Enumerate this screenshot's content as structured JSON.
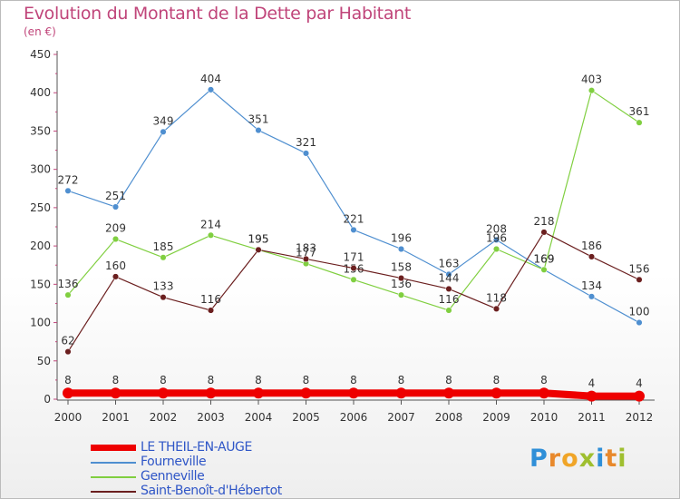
{
  "title": "Evolution du Montant de la Dette par Habitant",
  "unit": "(en €)",
  "logo": {
    "letters": [
      "P",
      "r",
      "o",
      "x",
      "i",
      "t",
      "i"
    ],
    "colors": [
      "#2f8fd8",
      "#e8892c",
      "#f0a528",
      "#9fbf2f",
      "#2f8fd8",
      "#e8892c",
      "#9fbf2f"
    ]
  },
  "chart_data": {
    "type": "line",
    "title": "Evolution du Montant de la Dette par Habitant",
    "ylabel": "(en €)",
    "xlabel": "",
    "x": [
      "2000",
      "2001",
      "2002",
      "2003",
      "2004",
      "2005",
      "2006",
      "2007",
      "2008",
      "2009",
      "2010",
      "2011",
      "2012"
    ],
    "ylim": [
      0,
      450
    ],
    "yticks": [
      0,
      50,
      100,
      150,
      200,
      250,
      300,
      350,
      400,
      450
    ],
    "grid": false,
    "series": [
      {
        "name": "LE THEIL-EN-AUGE",
        "color": "#ee0000",
        "width": 8,
        "values": [
          8,
          8,
          8,
          8,
          8,
          8,
          8,
          8,
          8,
          8,
          8,
          4,
          4
        ],
        "labels": [
          "8",
          "8",
          "8",
          "8",
          "8",
          "8",
          "8",
          "8",
          "8",
          "8",
          "8",
          "4",
          "4"
        ]
      },
      {
        "name": "Fourneville",
        "color": "#4f8fd0",
        "width": 1.2,
        "values": [
          272,
          251,
          349,
          404,
          351,
          321,
          221,
          196,
          163,
          208,
          169,
          134,
          100
        ],
        "labels": [
          "272",
          "251",
          "349",
          "404",
          "351",
          "321",
          "221",
          "196",
          "163",
          "208",
          "169",
          "134",
          "100"
        ]
      },
      {
        "name": "Genneville",
        "color": "#80cf40",
        "width": 1.2,
        "values": [
          136,
          209,
          185,
          214,
          195,
          177,
          156,
          136,
          116,
          196,
          169,
          403,
          361
        ],
        "labels": [
          "136",
          "209",
          "185",
          "214",
          "195",
          "177",
          "156",
          "136",
          "116",
          "196",
          "169",
          "403",
          "361"
        ]
      },
      {
        "name": "Saint-Benoît-d'Hébertot",
        "color": "#6b1f1f",
        "width": 1.2,
        "values": [
          62,
          160,
          133,
          116,
          195,
          183,
          171,
          158,
          144,
          118,
          218,
          186,
          156
        ],
        "labels": [
          "62",
          "160",
          "133",
          "116",
          "195",
          "183",
          "171",
          "158",
          "144",
          "118",
          "218",
          "186",
          "156"
        ]
      }
    ]
  }
}
